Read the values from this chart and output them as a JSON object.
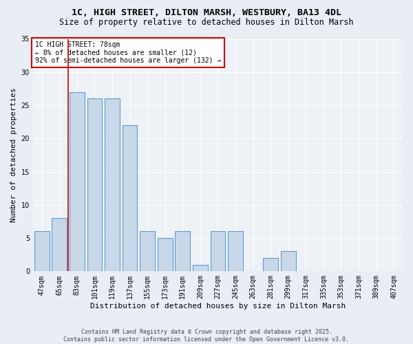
{
  "title1": "1C, HIGH STREET, DILTON MARSH, WESTBURY, BA13 4DL",
  "title2": "Size of property relative to detached houses in Dilton Marsh",
  "xlabel": "Distribution of detached houses by size in Dilton Marsh",
  "ylabel": "Number of detached properties",
  "categories": [
    "47sqm",
    "65sqm",
    "83sqm",
    "101sqm",
    "119sqm",
    "137sqm",
    "155sqm",
    "173sqm",
    "191sqm",
    "209sqm",
    "227sqm",
    "245sqm",
    "263sqm",
    "281sqm",
    "299sqm",
    "317sqm",
    "335sqm",
    "353sqm",
    "371sqm",
    "389sqm",
    "407sqm"
  ],
  "values": [
    6,
    8,
    27,
    26,
    26,
    22,
    6,
    5,
    6,
    1,
    6,
    6,
    0,
    2,
    3,
    0,
    0,
    0,
    0,
    0,
    0
  ],
  "bar_color": "#c8d8e8",
  "bar_edge_color": "#5b9bd5",
  "vline_x": 1.5,
  "vline_color": "#cc0000",
  "annotation_text": "1C HIGH STREET: 78sqm\n← 8% of detached houses are smaller (12)\n92% of semi-detached houses are larger (132) →",
  "annotation_box_color": "#ffffff",
  "annotation_box_edgecolor": "#cc0000",
  "ylim": [
    0,
    35
  ],
  "yticks": [
    0,
    5,
    10,
    15,
    20,
    25,
    30,
    35
  ],
  "footer": "Contains HM Land Registry data © Crown copyright and database right 2025.\nContains public sector information licensed under the Open Government Licence v3.0.",
  "bg_color": "#e8eef4",
  "plot_bg_color": "#eef2f7",
  "grid_color": "#ffffff",
  "title_fontsize": 9.5,
  "subtitle_fontsize": 8.5,
  "label_fontsize": 8,
  "tick_fontsize": 7,
  "annotation_fontsize": 7,
  "footer_fontsize": 6
}
